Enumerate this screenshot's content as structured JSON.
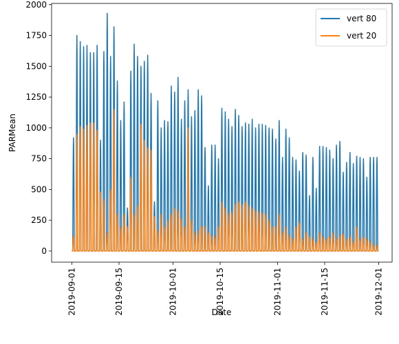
{
  "chart_data": {
    "type": "line",
    "xlabel": "Date",
    "ylabel": "PARMean",
    "x_axis": {
      "type": "date",
      "range": [
        "2019-08-26",
        "2019-12-05"
      ],
      "ticks": [
        "2019-09-01",
        "2019-09-15",
        "2019-10-01",
        "2019-10-15",
        "2019-11-01",
        "2019-11-15",
        "2019-12-01"
      ]
    },
    "y_axis": {
      "range": [
        -90,
        2010
      ],
      "ticks": [
        0,
        250,
        500,
        750,
        1000,
        1250,
        1500,
        1750,
        2000
      ]
    },
    "grid": false,
    "legend_position": "top-right",
    "series": [
      {
        "name": "vert 80",
        "color": "#1f77b4",
        "daily_peaks": {
          "start_date": "2019-09-01",
          "values": [
            920,
            1750,
            1700,
            1660,
            1670,
            1610,
            1610,
            1670,
            900,
            1620,
            1930,
            1580,
            1820,
            1380,
            1060,
            1210,
            350,
            1460,
            1680,
            1580,
            1500,
            1540,
            1590,
            1280,
            400,
            1220,
            1000,
            1060,
            1050,
            1340,
            1290,
            1410,
            1070,
            1220,
            1310,
            1090,
            1140,
            1310,
            1260,
            840,
            530,
            860,
            860,
            750,
            1160,
            1130,
            1070,
            1010,
            1150,
            1100,
            1010,
            1040,
            1030,
            1070,
            1000,
            1030,
            1030,
            1020,
            1000,
            990,
            910,
            1060,
            760,
            990,
            920,
            760,
            740,
            650,
            800,
            780,
            450,
            760,
            510,
            850,
            850,
            840,
            820,
            750,
            860,
            890,
            640,
            720,
            800,
            710,
            770,
            760,
            750,
            600,
            760,
            760,
            760
          ]
        }
      },
      {
        "name": "vert 20",
        "color": "#ff7f0e",
        "daily_peaks": {
          "start_date": "2019-09-01",
          "values": [
            120,
            950,
            1010,
            990,
            1020,
            1040,
            1040,
            980,
            480,
            420,
            150,
            500,
            1150,
            300,
            200,
            300,
            200,
            600,
            300,
            370,
            1030,
            900,
            840,
            820,
            280,
            170,
            300,
            200,
            250,
            300,
            350,
            330,
            270,
            200,
            1000,
            250,
            150,
            170,
            200,
            200,
            150,
            130,
            120,
            200,
            400,
            350,
            300,
            320,
            380,
            400,
            380,
            400,
            370,
            350,
            330,
            320,
            310,
            300,
            250,
            200,
            200,
            300,
            150,
            200,
            130,
            100,
            200,
            230,
            100,
            150,
            120,
            100,
            80,
            150,
            120,
            100,
            120,
            150,
            100,
            130,
            140,
            100,
            120,
            80,
            200,
            100,
            120,
            100,
            80,
            50,
            50
          ]
        }
      }
    ]
  }
}
